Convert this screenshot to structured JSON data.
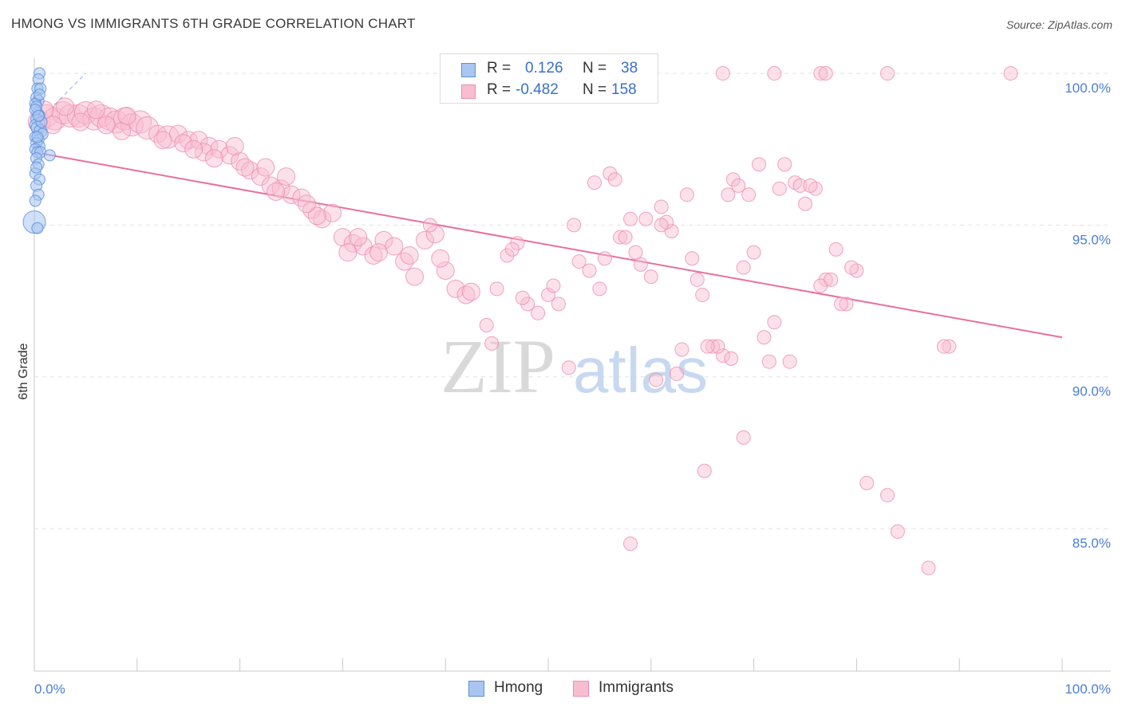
{
  "title": "HMONG VS IMMIGRANTS 6TH GRADE CORRELATION CHART",
  "source": "Source: ZipAtlas.com",
  "watermark": {
    "zip": "ZIP",
    "atlas": "atlas"
  },
  "colors": {
    "hmong_fill": "#a9c6f0",
    "hmong_stroke": "#5d8fdc",
    "immigrants_fill": "#f8bdd0",
    "immigrants_stroke": "#ec8fae",
    "immigrants_line": "#e8709a",
    "hmong_line": "#8fb0e0",
    "axis_label": "#4a7fd4",
    "grid": "#e2e2e2"
  },
  "stats": {
    "rows": [
      {
        "r_label": "R =",
        "r_value": "0.126",
        "n_label": "N =",
        "n_value": "38"
      },
      {
        "r_label": "R =",
        "r_value": "-0.482",
        "n_label": "N =",
        "n_value": "158"
      }
    ]
  },
  "legend": {
    "items": [
      {
        "label": "Hmong"
      },
      {
        "label": "Immigrants"
      }
    ]
  },
  "chart_data": {
    "type": "scatter",
    "title": "HMONG VS IMMIGRANTS 6TH GRADE CORRELATION CHART",
    "xlabel": "",
    "ylabel": "6th Grade",
    "xlim": [
      0,
      100
    ],
    "ylim": [
      80.3,
      100.5
    ],
    "x_tick_labels": [
      "0.0%",
      "100.0%"
    ],
    "y_ticks": [
      100,
      95,
      90,
      85
    ],
    "y_tick_labels": [
      "100.0%",
      "95.0%",
      "90.0%",
      "85.0%"
    ],
    "grid": true,
    "legend_position": "bottom-center",
    "series": [
      {
        "name": "Hmong",
        "r": 0.126,
        "n": 38,
        "trend": {
          "x0": 0,
          "y0": 98.3,
          "x1": 5,
          "y1": 100.0
        },
        "points": [
          [
            0.5,
            100.0,
            1
          ],
          [
            0.4,
            99.8,
            1
          ],
          [
            0.3,
            99.5,
            1
          ],
          [
            0.6,
            99.5,
            1
          ],
          [
            0.2,
            99.2,
            1
          ],
          [
            0.4,
            99.1,
            1
          ],
          [
            0.1,
            99.0,
            1
          ],
          [
            0.3,
            98.7,
            1
          ],
          [
            0.5,
            98.6,
            1
          ],
          [
            0.2,
            98.5,
            1
          ],
          [
            0.1,
            98.3,
            1
          ],
          [
            0.3,
            98.2,
            2
          ],
          [
            0.6,
            98.1,
            2
          ],
          [
            0.8,
            98.0,
            1
          ],
          [
            0.1,
            97.9,
            1
          ],
          [
            0.4,
            97.8,
            1
          ],
          [
            0.2,
            97.7,
            1
          ],
          [
            0.5,
            97.6,
            1
          ],
          [
            0.1,
            97.5,
            1
          ],
          [
            0.3,
            97.4,
            1
          ],
          [
            0.6,
            97.4,
            1
          ],
          [
            1.5,
            97.3,
            1
          ],
          [
            0.2,
            97.2,
            1
          ],
          [
            0.4,
            97.0,
            1
          ],
          [
            0.1,
            96.7,
            1
          ],
          [
            0.5,
            96.5,
            1
          ],
          [
            0.2,
            96.3,
            1
          ],
          [
            0.4,
            96.0,
            1
          ],
          [
            0.1,
            95.8,
            1
          ],
          [
            0.0,
            95.1,
            3
          ],
          [
            0.3,
            94.9,
            1
          ],
          [
            0.2,
            98.9,
            1
          ],
          [
            0.5,
            99.3,
            1
          ],
          [
            0.1,
            98.8,
            1
          ],
          [
            0.3,
            97.9,
            1
          ],
          [
            0.7,
            98.4,
            1
          ],
          [
            0.2,
            96.9,
            1
          ],
          [
            0.4,
            98.6,
            1
          ]
        ]
      },
      {
        "name": "Immigrants",
        "r": -0.482,
        "n": 158,
        "trend": {
          "x0": 0,
          "y0": 97.4,
          "x1": 100,
          "y1": 91.3
        },
        "points": [
          [
            0.5,
            98.4,
            3
          ],
          [
            1.2,
            98.6,
            3
          ],
          [
            2.0,
            98.5,
            3
          ],
          [
            2.8,
            98.7,
            3
          ],
          [
            3.5,
            98.6,
            3
          ],
          [
            4.3,
            98.6,
            3
          ],
          [
            5.0,
            98.7,
            3
          ],
          [
            5.8,
            98.5,
            3
          ],
          [
            6.5,
            98.6,
            3
          ],
          [
            7.3,
            98.5,
            3
          ],
          [
            8.0,
            98.4,
            3
          ],
          [
            8.8,
            98.5,
            3
          ],
          [
            9.5,
            98.3,
            3
          ],
          [
            10.3,
            98.4,
            3
          ],
          [
            11.0,
            98.2,
            3
          ],
          [
            1.0,
            98.8,
            2
          ],
          [
            1.8,
            98.3,
            2
          ],
          [
            3.0,
            98.9,
            2
          ],
          [
            4.5,
            98.4,
            2
          ],
          [
            6.0,
            98.8,
            2
          ],
          [
            7.0,
            98.3,
            2
          ],
          [
            8.5,
            98.1,
            2
          ],
          [
            9.0,
            98.6,
            2
          ],
          [
            12.0,
            98.0,
            2
          ],
          [
            13.0,
            97.9,
            3
          ],
          [
            14.0,
            98.0,
            2
          ],
          [
            15.0,
            97.8,
            2
          ],
          [
            16.0,
            97.8,
            2
          ],
          [
            17.0,
            97.6,
            2
          ],
          [
            18.0,
            97.5,
            2
          ],
          [
            14.5,
            97.7,
            2
          ],
          [
            12.5,
            97.8,
            2
          ],
          [
            16.5,
            97.4,
            2
          ],
          [
            19.0,
            97.3,
            2
          ],
          [
            20.0,
            97.1,
            2
          ],
          [
            21.0,
            96.8,
            2
          ],
          [
            22.0,
            96.6,
            2
          ],
          [
            23.0,
            96.3,
            2
          ],
          [
            24.0,
            96.2,
            2
          ],
          [
            25.0,
            96.0,
            2
          ],
          [
            20.5,
            96.9,
            2
          ],
          [
            22.5,
            96.9,
            2
          ],
          [
            26.0,
            95.9,
            2
          ],
          [
            27.0,
            95.5,
            2
          ],
          [
            28.0,
            95.2,
            2
          ],
          [
            29.0,
            95.4,
            2
          ],
          [
            30.0,
            94.6,
            2
          ],
          [
            31.0,
            94.4,
            2
          ],
          [
            32.0,
            94.3,
            2
          ],
          [
            33.0,
            94.0,
            2
          ],
          [
            34.0,
            94.5,
            2
          ],
          [
            35.0,
            94.3,
            2
          ],
          [
            36.0,
            93.8,
            2
          ],
          [
            37.0,
            93.3,
            2
          ],
          [
            38.0,
            94.5,
            2
          ],
          [
            39.0,
            94.7,
            2
          ],
          [
            40.0,
            93.5,
            2
          ],
          [
            41.0,
            92.9,
            2
          ],
          [
            42.0,
            92.7,
            2
          ],
          [
            38.5,
            95.0,
            1
          ],
          [
            27.5,
            95.3,
            2
          ],
          [
            26.5,
            95.7,
            2
          ],
          [
            24.5,
            96.6,
            2
          ],
          [
            23.5,
            96.1,
            2
          ],
          [
            19.5,
            97.6,
            2
          ],
          [
            17.5,
            97.2,
            2
          ],
          [
            15.5,
            97.5,
            2
          ],
          [
            30.5,
            94.1,
            2
          ],
          [
            31.5,
            94.6,
            2
          ],
          [
            33.5,
            94.1,
            2
          ],
          [
            36.5,
            94.0,
            2
          ],
          [
            39.5,
            93.9,
            2
          ],
          [
            42.5,
            92.8,
            2
          ],
          [
            44.0,
            91.7,
            1
          ],
          [
            45.0,
            92.9,
            1
          ],
          [
            46.0,
            94.0,
            1
          ],
          [
            47.0,
            94.4,
            1
          ],
          [
            48.0,
            92.4,
            1
          ],
          [
            49.0,
            92.1,
            1
          ],
          [
            50.0,
            92.7,
            1
          ],
          [
            51.0,
            92.4,
            1
          ],
          [
            52.0,
            90.3,
            1
          ],
          [
            53.0,
            93.8,
            1
          ],
          [
            54.0,
            93.5,
            1
          ],
          [
            55.0,
            92.9,
            1
          ],
          [
            56.0,
            96.7,
            1
          ],
          [
            57.0,
            94.6,
            1
          ],
          [
            58.0,
            95.2,
            1
          ],
          [
            59.0,
            93.7,
            1
          ],
          [
            60.0,
            93.3,
            1
          ],
          [
            61.0,
            95.6,
            1
          ],
          [
            62.0,
            94.8,
            1
          ],
          [
            63.0,
            90.9,
            1
          ],
          [
            64.0,
            93.9,
            1
          ],
          [
            65.0,
            92.7,
            1
          ],
          [
            66.0,
            91.0,
            1
          ],
          [
            67.0,
            90.7,
            1
          ],
          [
            68.0,
            96.5,
            1
          ],
          [
            69.0,
            93.6,
            1
          ],
          [
            70.0,
            94.1,
            1
          ],
          [
            71.0,
            91.3,
            1
          ],
          [
            72.0,
            91.8,
            1
          ],
          [
            73.0,
            97.0,
            1
          ],
          [
            74.0,
            96.4,
            1
          ],
          [
            75.0,
            95.7,
            1
          ],
          [
            76.0,
            96.2,
            1
          ],
          [
            77.0,
            93.2,
            1
          ],
          [
            78.0,
            94.2,
            1
          ],
          [
            79.0,
            92.4,
            1
          ],
          [
            80.0,
            93.5,
            1
          ],
          [
            44.5,
            91.1,
            1
          ],
          [
            46.5,
            94.2,
            1
          ],
          [
            47.5,
            92.6,
            1
          ],
          [
            50.5,
            93.0,
            1
          ],
          [
            55.5,
            93.9,
            1
          ],
          [
            57.5,
            94.6,
            1
          ],
          [
            58.5,
            94.1,
            1
          ],
          [
            60.5,
            89.9,
            1
          ],
          [
            62.5,
            90.1,
            1
          ],
          [
            64.5,
            93.2,
            1
          ],
          [
            66.5,
            91.0,
            1
          ],
          [
            68.5,
            96.3,
            1
          ],
          [
            71.5,
            90.5,
            1
          ],
          [
            73.5,
            90.5,
            1
          ],
          [
            74.5,
            96.3,
            1
          ],
          [
            75.5,
            96.3,
            1
          ],
          [
            76.5,
            93.0,
            1
          ],
          [
            77.5,
            93.2,
            1
          ],
          [
            63.5,
            96.0,
            1
          ],
          [
            65.5,
            91.0,
            1
          ],
          [
            67.5,
            96.0,
            1
          ],
          [
            69.5,
            96.0,
            1
          ],
          [
            61.5,
            95.1,
            1
          ],
          [
            59.5,
            95.2,
            1
          ],
          [
            70.5,
            97.0,
            1
          ],
          [
            72.5,
            96.2,
            1
          ],
          [
            78.5,
            92.4,
            1
          ],
          [
            79.5,
            93.6,
            1
          ],
          [
            67.8,
            90.6,
            1
          ],
          [
            65.2,
            86.9,
            1
          ],
          [
            69.0,
            88.0,
            1
          ],
          [
            81.0,
            86.5,
            1
          ],
          [
            83.0,
            86.1,
            1
          ],
          [
            84.0,
            84.9,
            1
          ],
          [
            87.0,
            83.7,
            1
          ],
          [
            89.0,
            91.0,
            1
          ],
          [
            58.0,
            84.5,
            1
          ],
          [
            67.0,
            100.0,
            1
          ],
          [
            72.0,
            100.0,
            1
          ],
          [
            76.5,
            100.0,
            1
          ],
          [
            77.0,
            100.0,
            1
          ],
          [
            83.0,
            100.0,
            1
          ],
          [
            95.0,
            100.0,
            1
          ],
          [
            88.5,
            91.0,
            1
          ],
          [
            52.5,
            95.0,
            1
          ],
          [
            54.5,
            96.4,
            1
          ],
          [
            56.5,
            96.5,
            1
          ],
          [
            61.0,
            95.0,
            1
          ]
        ]
      }
    ]
  }
}
